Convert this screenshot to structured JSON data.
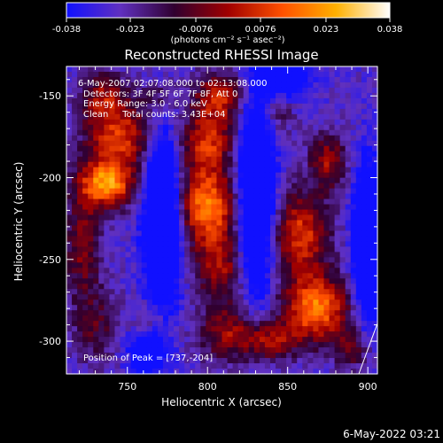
{
  "chart_data": {
    "type": "heatmap",
    "title": "Reconstructed RHESSI Image",
    "xlabel": "Heliocentric X (arcsec)",
    "ylabel": "Heliocentric Y (arcsec)",
    "xlim": [
      712,
      906
    ],
    "ylim": [
      -320,
      -132
    ],
    "x_ticks": [
      750,
      800,
      850,
      900
    ],
    "y_ticks": [
      -150,
      -200,
      -250,
      -300
    ],
    "colorbar": {
      "min": -0.038,
      "max": 0.038,
      "ticks": [
        "-0.038",
        "-0.023",
        "-0.0076",
        "0.0076",
        "0.023",
        "0.038"
      ],
      "tick_values": [
        -0.038,
        -0.023,
        -0.0076,
        0.0076,
        0.023,
        0.038
      ],
      "unit_label": "(photons cm⁻² s⁻¹ asec⁻²)",
      "colors": [
        "#1010ff",
        "#6030c0",
        "#300030",
        "#a00000",
        "#ff5000",
        "#ffb000",
        "#ffffff"
      ]
    },
    "annotations": [
      "6-May-2007 02:07:08.000 to 02:13:08.000",
      "Detectors: 3F 4F 5F 6F 7F 8F, Att 0",
      "Energy Range: 3.0 - 6.0 keV",
      "Clean     Total counts: 3.43E+04"
    ],
    "peak_text": "Position of Peak = [737,-204]",
    "peak": [
      737,
      -204
    ],
    "blobs": [
      {
        "x": 737,
        "y": -204,
        "sx": 12,
        "sy": 10,
        "a": 1.0
      },
      {
        "x": 745,
        "y": -175,
        "sx": 15,
        "sy": 14,
        "a": 0.75
      },
      {
        "x": 735,
        "y": -150,
        "sx": 10,
        "sy": 10,
        "a": 0.5
      },
      {
        "x": 722,
        "y": -240,
        "sx": 8,
        "sy": 22,
        "a": 0.5
      },
      {
        "x": 730,
        "y": -290,
        "sx": 10,
        "sy": 16,
        "a": 0.35
      },
      {
        "x": 800,
        "y": -218,
        "sx": 13,
        "sy": 16,
        "a": 0.95
      },
      {
        "x": 800,
        "y": -178,
        "sx": 12,
        "sy": 14,
        "a": 0.7
      },
      {
        "x": 808,
        "y": -150,
        "sx": 11,
        "sy": 10,
        "a": 0.65
      },
      {
        "x": 808,
        "y": -255,
        "sx": 12,
        "sy": 14,
        "a": 0.55
      },
      {
        "x": 815,
        "y": -295,
        "sx": 14,
        "sy": 12,
        "a": 0.55
      },
      {
        "x": 868,
        "y": -280,
        "sx": 14,
        "sy": 14,
        "a": 0.95
      },
      {
        "x": 858,
        "y": -235,
        "sx": 12,
        "sy": 18,
        "a": 0.75
      },
      {
        "x": 875,
        "y": -190,
        "sx": 8,
        "sy": 12,
        "a": 0.55
      },
      {
        "x": 840,
        "y": -300,
        "sx": 12,
        "sy": 8,
        "a": 0.5
      },
      {
        "x": 890,
        "y": -305,
        "sx": 8,
        "sy": 8,
        "a": 0.4
      },
      {
        "x": 765,
        "y": -290,
        "sx": 8,
        "sy": 10,
        "a": 0.35
      },
      {
        "x": 770,
        "y": -150,
        "sx": 8,
        "sy": 8,
        "a": 0.3
      },
      {
        "x": 842,
        "y": -160,
        "sx": 8,
        "sy": 10,
        "a": 0.3
      }
    ],
    "troughs": [
      {
        "x": 772,
        "y": -225,
        "sx": 8,
        "sy": 40,
        "a": 0.9
      },
      {
        "x": 830,
        "y": -210,
        "sx": 8,
        "sy": 45,
        "a": 0.9
      },
      {
        "x": 900,
        "y": -240,
        "sx": 6,
        "sy": 30,
        "a": 1.1
      },
      {
        "x": 762,
        "y": -305,
        "sx": 8,
        "sy": 10,
        "a": 0.6
      },
      {
        "x": 850,
        "y": -140,
        "sx": 10,
        "sy": 8,
        "a": 0.6
      }
    ]
  },
  "footer": {
    "timestamp": "6-May-2022 03:21"
  }
}
